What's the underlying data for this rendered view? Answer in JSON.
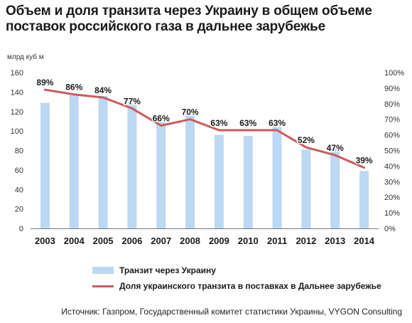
{
  "title": "Объем и доля транзита через Украину в общем объеме поставок российского газа в дальнее зарубежье",
  "source": "Источник: Газпром, Государственный комитет статистики Украины, VYGON Consulting",
  "chart_data": {
    "type": "bar",
    "categories": [
      "2003",
      "2004",
      "2005",
      "2006",
      "2007",
      "2008",
      "2009",
      "2010",
      "2011",
      "2012",
      "2013",
      "2014"
    ],
    "ylabel": "млрд куб м",
    "ylim": [
      0,
      160
    ],
    "y_ticks": [
      "160",
      "140",
      "120",
      "100",
      "80",
      "60",
      "40",
      "20",
      "0"
    ],
    "y2lim": [
      0,
      100
    ],
    "y2_ticks": [
      "100%",
      "90%",
      "80%",
      "70%",
      "60%",
      "50%",
      "40%",
      "30%",
      "20%",
      "10%",
      "0%"
    ],
    "grid": false,
    "legend_position": "bottom",
    "series": [
      {
        "name": "Транзит через Украину",
        "type": "bar",
        "axis": "left",
        "color": "#bcd8f2",
        "values": [
          129,
          137,
          136,
          128,
          115,
          119,
          96,
          95,
          104,
          81,
          84,
          59
        ]
      },
      {
        "name": "Доля украинского транзита в поставках в Дальнее зарубежье",
        "type": "line",
        "axis": "right",
        "color": "#cd5a5a",
        "values": [
          89,
          86,
          84,
          77,
          66,
          70,
          63,
          63,
          63,
          52,
          47,
          39
        ],
        "labels": [
          "89%",
          "86%",
          "84%",
          "77%",
          "66%",
          "70%",
          "63%",
          "63%",
          "63%",
          "52%",
          "47%",
          "39%"
        ]
      }
    ]
  }
}
